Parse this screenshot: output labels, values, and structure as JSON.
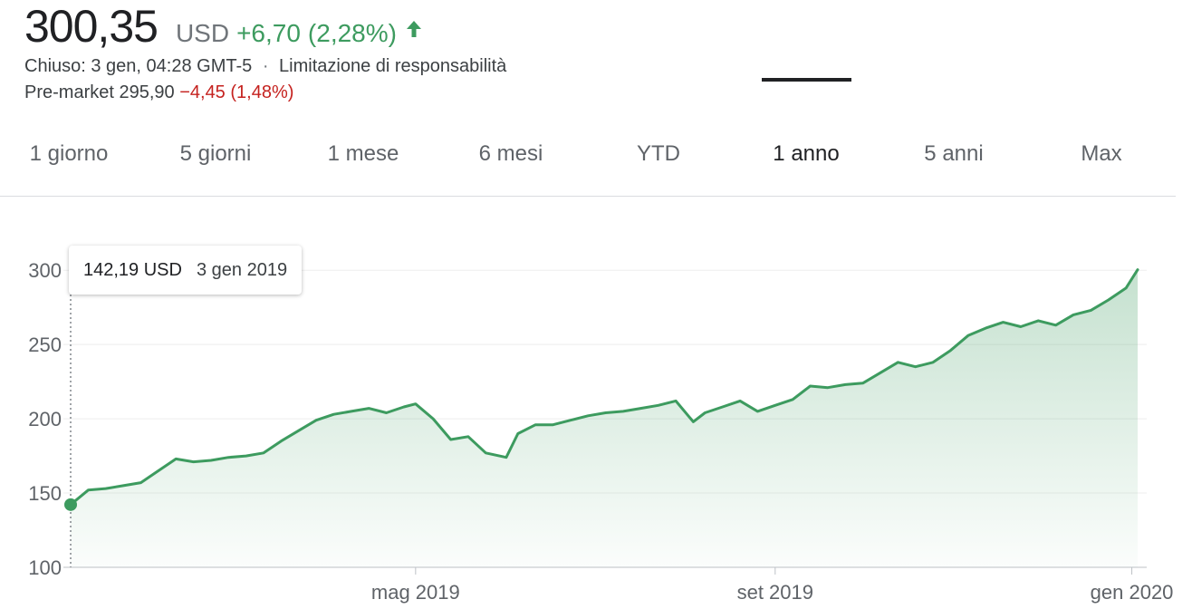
{
  "quote": {
    "price": "300,35",
    "currency": "USD",
    "change": "+6,70",
    "change_pct": "(2,28%)",
    "trend_icon": "arrow-up-icon",
    "closed_label": "Chiuso: 3 gen, 04:28 GMT-5",
    "separator": "·",
    "disclaimer_link": "Limitazione di responsabilità",
    "premarket_label": "Pre-market",
    "premarket_price": "295,90",
    "premarket_change": "−4,45",
    "premarket_pct": "(1,48%)"
  },
  "tabs": [
    {
      "label": "1 giorno"
    },
    {
      "label": "5 giorni"
    },
    {
      "label": "1 mese"
    },
    {
      "label": "6 mesi"
    },
    {
      "label": "YTD"
    },
    {
      "label": "1 anno",
      "active": true
    },
    {
      "label": "5 anni"
    },
    {
      "label": "Max"
    }
  ],
  "tooltip": {
    "price": "142,19 USD",
    "date": "3 gen 2019"
  },
  "colors": {
    "up": "#3d9b5f",
    "down": "#c5221f",
    "line": "#3d9b5f",
    "grid": "#eeeeee",
    "axis_text": "#5f6368"
  },
  "chart_data": {
    "type": "area",
    "grid": true,
    "ylim": [
      100,
      305
    ],
    "yticks": [
      100,
      150,
      200,
      250,
      300
    ],
    "xlim": [
      "2019-01-03",
      "2020-01-03"
    ],
    "xticks": [
      {
        "date": "2019-05-01",
        "label": "mag 2019"
      },
      {
        "date": "2019-09-01",
        "label": "set 2019"
      },
      {
        "date": "2020-01-01",
        "label": "gen 2020"
      }
    ],
    "series": [
      {
        "x": [
          "2019-01-03",
          "2019-01-09",
          "2019-01-15",
          "2019-01-21",
          "2019-01-27",
          "2019-02-02",
          "2019-02-08",
          "2019-02-14",
          "2019-02-20",
          "2019-02-26",
          "2019-03-04",
          "2019-03-10",
          "2019-03-16",
          "2019-03-22",
          "2019-03-28",
          "2019-04-03",
          "2019-04-09",
          "2019-04-15",
          "2019-04-21",
          "2019-04-27",
          "2019-05-01",
          "2019-05-07",
          "2019-05-13",
          "2019-05-19",
          "2019-05-25",
          "2019-06-01",
          "2019-06-05",
          "2019-06-11",
          "2019-06-17",
          "2019-06-23",
          "2019-06-29",
          "2019-07-05",
          "2019-07-11",
          "2019-07-17",
          "2019-07-23",
          "2019-07-29",
          "2019-08-04",
          "2019-08-08",
          "2019-08-14",
          "2019-08-20",
          "2019-08-26",
          "2019-09-01",
          "2019-09-07",
          "2019-09-13",
          "2019-09-19",
          "2019-09-25",
          "2019-10-01",
          "2019-10-07",
          "2019-10-13",
          "2019-10-19",
          "2019-10-25",
          "2019-10-31",
          "2019-11-06",
          "2019-11-12",
          "2019-11-18",
          "2019-11-24",
          "2019-11-30",
          "2019-12-06",
          "2019-12-12",
          "2019-12-18",
          "2019-12-24",
          "2019-12-30",
          "2020-01-03"
        ],
        "values": [
          142.19,
          152,
          153,
          155,
          157,
          165,
          173,
          171,
          172,
          174,
          175,
          177,
          185,
          192,
          199,
          203,
          205,
          207,
          204,
          208,
          210,
          200,
          186,
          188,
          177,
          174,
          190,
          196,
          196,
          199,
          202,
          204,
          205,
          207,
          209,
          212,
          198,
          204,
          208,
          212,
          205,
          209,
          213,
          222,
          221,
          223,
          224,
          231,
          238,
          235,
          238,
          246,
          256,
          261,
          265,
          262,
          266,
          263,
          270,
          273,
          280,
          288,
          300.35
        ]
      }
    ]
  }
}
